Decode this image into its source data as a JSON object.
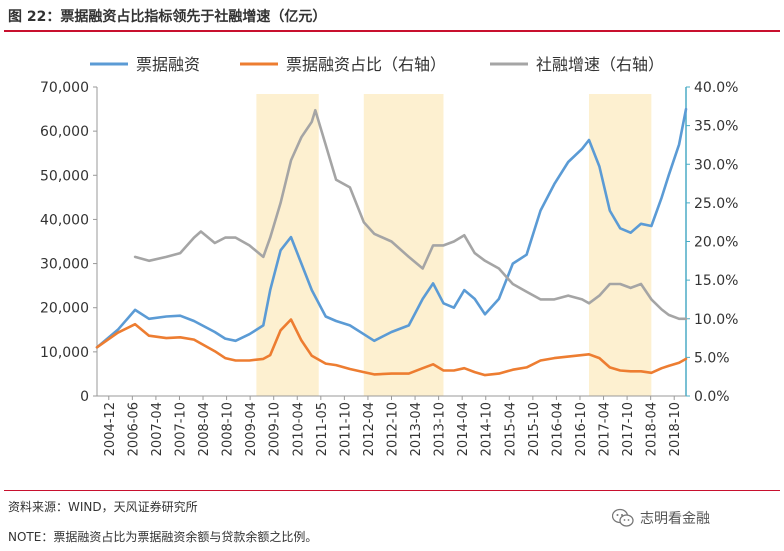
{
  "title": "图 22：票据融资占比指标领先于社融增速（亿元）",
  "source": "资料来源：WIND，天风证券研究所",
  "note": "NOTE：票据融资占比为票据融资余额与贷款余额之比例。",
  "watermark": "志明看金融",
  "colors": {
    "bills": "#5b9bd5",
    "share": "#ed7d31",
    "tsf": "#a5a5a5",
    "band": "#fdf0d0",
    "rule": "#c8102e",
    "right_axis": "#4bacc6"
  },
  "chart_data": {
    "type": "line",
    "title": "票据融资占比指标领先于社融增速（亿元）",
    "legend_position": "top",
    "grid": false,
    "x_tick_labels": [
      "2004-12",
      "2006-06",
      "2007-04",
      "2007-10",
      "2008-04",
      "2008-10",
      "2009-04",
      "2009-10",
      "2010-04",
      "2011-05",
      "2011-10",
      "2012-04",
      "2012-10",
      "2013-04",
      "2013-10",
      "2014-04",
      "2014-10",
      "2015-04",
      "2015-10",
      "2016-04",
      "2016-10",
      "2017-04",
      "2017-10",
      "2018-04",
      "2018-10"
    ],
    "left_axis": {
      "min": 0,
      "max": 70000,
      "ticks": [
        "0",
        "10,000",
        "20,000",
        "30,000",
        "40,000",
        "50,000",
        "60,000",
        "70,000"
      ]
    },
    "right_axis": {
      "min": 0,
      "max": 40,
      "unit": "%",
      "ticks": [
        "0.0%",
        "5.0%",
        "10.0%",
        "15.0%",
        "20.0%",
        "25.0%",
        "30.0%",
        "35.0%",
        "40.0%"
      ]
    },
    "shaded_periods": [
      [
        "2008-10",
        "2010-04"
      ],
      [
        "2011-05",
        "2013-04"
      ],
      [
        "2016-10",
        "2018-04"
      ]
    ],
    "series": [
      {
        "name": "票据融资",
        "axis": "left",
        "color": "#5b9bd5",
        "points": [
          [
            "2004-12",
            11000
          ],
          [
            "2005-06",
            15000
          ],
          [
            "2005-11",
            19500
          ],
          [
            "2006-03",
            17500
          ],
          [
            "2006-08",
            18000
          ],
          [
            "2006-12",
            18200
          ],
          [
            "2007-04",
            17000
          ],
          [
            "2007-10",
            14500
          ],
          [
            "2008-01",
            13000
          ],
          [
            "2008-04",
            12500
          ],
          [
            "2008-08",
            14000
          ],
          [
            "2008-12",
            16000
          ],
          [
            "2009-02",
            24000
          ],
          [
            "2009-05",
            33000
          ],
          [
            "2009-08",
            36000
          ],
          [
            "2009-11",
            30000
          ],
          [
            "2010-02",
            24000
          ],
          [
            "2010-06",
            18000
          ],
          [
            "2010-09",
            17000
          ],
          [
            "2011-01",
            16000
          ],
          [
            "2011-05",
            14000
          ],
          [
            "2011-08",
            12500
          ],
          [
            "2012-01",
            14500
          ],
          [
            "2012-06",
            16000
          ],
          [
            "2012-10",
            22000
          ],
          [
            "2013-01",
            25500
          ],
          [
            "2013-04",
            21000
          ],
          [
            "2013-07",
            20000
          ],
          [
            "2013-10",
            24000
          ],
          [
            "2014-01",
            22000
          ],
          [
            "2014-04",
            18500
          ],
          [
            "2014-08",
            22000
          ],
          [
            "2014-12",
            30000
          ],
          [
            "2015-04",
            32000
          ],
          [
            "2015-08",
            42000
          ],
          [
            "2015-12",
            48000
          ],
          [
            "2016-04",
            53000
          ],
          [
            "2016-08",
            56000
          ],
          [
            "2016-10",
            58000
          ],
          [
            "2017-01",
            52000
          ],
          [
            "2017-04",
            42000
          ],
          [
            "2017-07",
            38000
          ],
          [
            "2017-10",
            37000
          ],
          [
            "2018-01",
            39000
          ],
          [
            "2018-04",
            38500
          ],
          [
            "2018-07",
            45000
          ],
          [
            "2018-09",
            50000
          ],
          [
            "2018-12",
            57000
          ],
          [
            "2019-02",
            65000
          ]
        ]
      },
      {
        "name": "票据融资占比（右轴）",
        "axis": "right",
        "color": "#ed7d31",
        "points": [
          [
            "2004-12",
            6.3
          ],
          [
            "2005-06",
            8.2
          ],
          [
            "2005-11",
            9.3
          ],
          [
            "2006-03",
            7.8
          ],
          [
            "2006-08",
            7.5
          ],
          [
            "2006-12",
            7.6
          ],
          [
            "2007-04",
            7.3
          ],
          [
            "2007-10",
            5.8
          ],
          [
            "2008-01",
            4.9
          ],
          [
            "2008-04",
            4.6
          ],
          [
            "2008-08",
            4.6
          ],
          [
            "2008-12",
            4.8
          ],
          [
            "2009-02",
            5.3
          ],
          [
            "2009-05",
            8.5
          ],
          [
            "2009-08",
            9.9
          ],
          [
            "2009-11",
            7.2
          ],
          [
            "2010-02",
            5.2
          ],
          [
            "2010-06",
            4.2
          ],
          [
            "2010-09",
            4.0
          ],
          [
            "2011-01",
            3.5
          ],
          [
            "2011-05",
            3.1
          ],
          [
            "2011-08",
            2.8
          ],
          [
            "2012-01",
            2.9
          ],
          [
            "2012-06",
            2.9
          ],
          [
            "2012-10",
            3.6
          ],
          [
            "2013-01",
            4.1
          ],
          [
            "2013-04",
            3.3
          ],
          [
            "2013-07",
            3.3
          ],
          [
            "2013-10",
            3.6
          ],
          [
            "2014-01",
            3.1
          ],
          [
            "2014-04",
            2.7
          ],
          [
            "2014-08",
            2.9
          ],
          [
            "2014-12",
            3.4
          ],
          [
            "2015-04",
            3.7
          ],
          [
            "2015-08",
            4.6
          ],
          [
            "2015-12",
            4.9
          ],
          [
            "2016-04",
            5.1
          ],
          [
            "2016-08",
            5.3
          ],
          [
            "2016-10",
            5.4
          ],
          [
            "2017-01",
            4.9
          ],
          [
            "2017-04",
            3.7
          ],
          [
            "2017-07",
            3.3
          ],
          [
            "2017-10",
            3.2
          ],
          [
            "2018-01",
            3.2
          ],
          [
            "2018-04",
            3.0
          ],
          [
            "2018-07",
            3.6
          ],
          [
            "2018-09",
            3.9
          ],
          [
            "2018-12",
            4.3
          ],
          [
            "2019-02",
            4.8
          ]
        ]
      },
      {
        "name": "社融增速（右轴）",
        "axis": "right",
        "color": "#a5a5a5",
        "points": [
          [
            "2005-11",
            18.0
          ],
          [
            "2006-03",
            17.5
          ],
          [
            "2006-08",
            18.0
          ],
          [
            "2006-12",
            18.5
          ],
          [
            "2007-04",
            20.5
          ],
          [
            "2007-06",
            21.3
          ],
          [
            "2007-10",
            19.8
          ],
          [
            "2008-01",
            20.5
          ],
          [
            "2008-04",
            20.5
          ],
          [
            "2008-08",
            19.5
          ],
          [
            "2008-12",
            18.0
          ],
          [
            "2009-02",
            20.5
          ],
          [
            "2009-05",
            25.0
          ],
          [
            "2009-08",
            30.5
          ],
          [
            "2009-11",
            33.5
          ],
          [
            "2010-02",
            35.5
          ],
          [
            "2010-03",
            37.0
          ],
          [
            "2010-06",
            32.5
          ],
          [
            "2010-09",
            28.0
          ],
          [
            "2011-01",
            27.0
          ],
          [
            "2011-05",
            22.5
          ],
          [
            "2011-08",
            21.0
          ],
          [
            "2012-01",
            20.0
          ],
          [
            "2012-06",
            18.0
          ],
          [
            "2012-10",
            16.5
          ],
          [
            "2013-01",
            19.5
          ],
          [
            "2013-04",
            19.5
          ],
          [
            "2013-07",
            20.0
          ],
          [
            "2013-10",
            20.8
          ],
          [
            "2014-01",
            18.5
          ],
          [
            "2014-04",
            17.5
          ],
          [
            "2014-08",
            16.5
          ],
          [
            "2014-12",
            14.5
          ],
          [
            "2015-04",
            13.5
          ],
          [
            "2015-08",
            12.5
          ],
          [
            "2015-12",
            12.5
          ],
          [
            "2016-04",
            13.0
          ],
          [
            "2016-08",
            12.5
          ],
          [
            "2016-10",
            12.0
          ],
          [
            "2017-01",
            13.0
          ],
          [
            "2017-04",
            14.5
          ],
          [
            "2017-07",
            14.5
          ],
          [
            "2017-10",
            14.0
          ],
          [
            "2018-01",
            14.5
          ],
          [
            "2018-04",
            12.5
          ],
          [
            "2018-07",
            11.2
          ],
          [
            "2018-09",
            10.5
          ],
          [
            "2018-12",
            10.0
          ],
          [
            "2019-02",
            10.0
          ]
        ]
      }
    ]
  }
}
